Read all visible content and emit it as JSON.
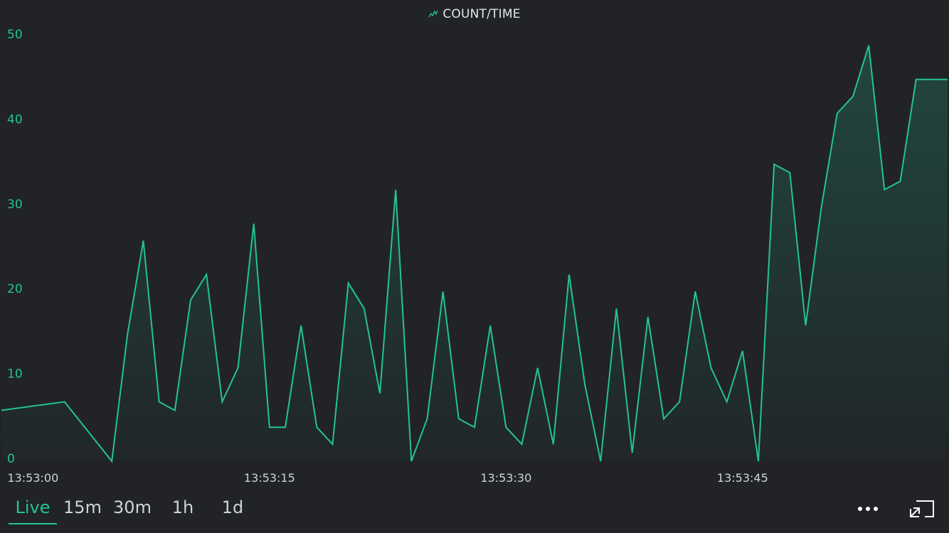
{
  "colors": {
    "background": "#212327",
    "accent": "#23c48e",
    "text": "#e3e6ea"
  },
  "header": {
    "title": "COUNT/TIME",
    "icon": "chart-line-icon"
  },
  "time_ranges": [
    {
      "label": "Live",
      "active": true
    },
    {
      "label": "15m",
      "active": false
    },
    {
      "label": "30m",
      "active": false
    },
    {
      "label": "1h",
      "active": false
    },
    {
      "label": "1d",
      "active": false
    }
  ],
  "controls": {
    "more_icon": "more-horizontal-icon",
    "expand_icon": "exit-fullscreen-icon"
  },
  "chart_data": {
    "type": "area",
    "title": "COUNT/TIME",
    "xlabel": "",
    "ylabel": "",
    "ylim": [
      0,
      50
    ],
    "yticks": [
      0,
      10,
      20,
      30,
      40,
      50
    ],
    "xlim": [
      "13:52:58",
      "13:53:58"
    ],
    "xticks": [
      "13:53:00",
      "13:53:15",
      "13:53:30",
      "13:53:45"
    ],
    "grid": false,
    "series": [
      {
        "x": [
          "13:52:58",
          "13:53:02",
          "13:53:05",
          "13:53:06",
          "13:53:07",
          "13:53:08",
          "13:53:09",
          "13:53:10",
          "13:53:11",
          "13:53:12",
          "13:53:13",
          "13:53:14",
          "13:53:15",
          "13:53:16",
          "13:53:17",
          "13:53:18",
          "13:53:19",
          "13:53:20",
          "13:53:21",
          "13:53:22",
          "13:53:23",
          "13:53:24",
          "13:53:25",
          "13:53:26",
          "13:53:27",
          "13:53:28",
          "13:53:29",
          "13:53:30",
          "13:53:31",
          "13:53:32",
          "13:53:33",
          "13:53:34",
          "13:53:35",
          "13:53:36",
          "13:53:37",
          "13:53:38",
          "13:53:39",
          "13:53:40",
          "13:53:41",
          "13:53:42",
          "13:53:43",
          "13:53:44",
          "13:53:45",
          "13:53:46",
          "13:53:47",
          "13:53:48",
          "13:53:49",
          "13:53:50",
          "13:53:51",
          "13:53:52",
          "13:53:53",
          "13:53:54",
          "13:53:55",
          "13:53:56",
          "13:53:57",
          "13:53:58"
        ],
        "values": [
          6,
          7,
          0,
          15,
          26,
          7,
          6,
          19,
          22,
          7,
          11,
          28,
          4,
          4,
          16,
          4,
          2,
          21,
          18,
          8,
          32,
          0,
          5,
          20,
          5,
          4,
          16,
          4,
          2,
          11,
          2,
          22,
          9,
          0,
          18,
          1,
          17,
          5,
          7,
          20,
          11,
          7,
          13,
          0,
          35,
          34,
          16,
          30,
          41,
          43,
          49,
          32,
          33,
          45,
          45,
          45
        ]
      }
    ]
  }
}
